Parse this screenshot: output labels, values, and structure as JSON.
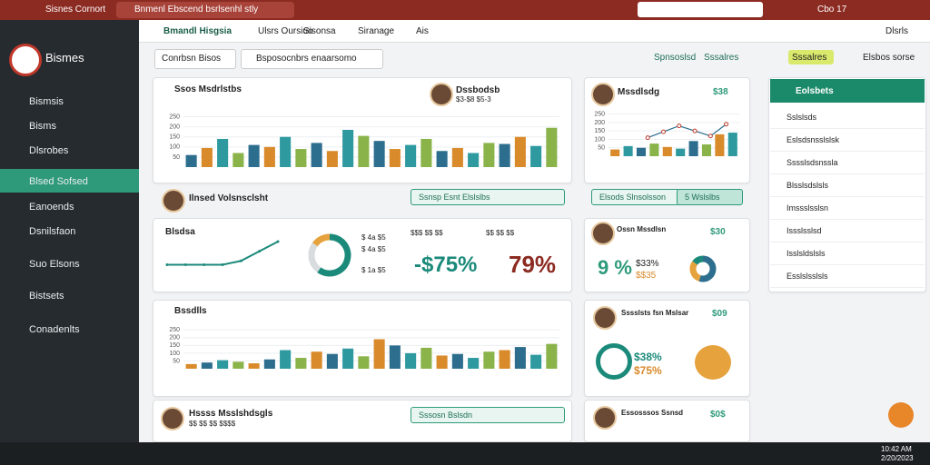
{
  "browser": {
    "tabs": [
      "Sisnes Cornort",
      "Bnmenl Ebscend bsrlsenhl stly"
    ]
  },
  "sidebar": {
    "brand": "Bismes",
    "items": [
      "Bismsis",
      "Bisms",
      "Dlsrobes",
      "Blsed Sofsed",
      "Eanoends",
      "Dsnilsfaon",
      "Suo Elsons",
      "Bistsets",
      "Conadenlts"
    ]
  },
  "nav": {
    "items": [
      "Bmandl Hisgsia",
      "Ulsrs Oursiuo",
      "Sisonsa",
      "Siranage",
      "Ais"
    ],
    "right": "Dlsrls",
    "user": "Cbo 17"
  },
  "filters": [
    "Conrbsn Bisos",
    "Bsposocnbrs enaarsomo"
  ],
  "actions": [
    "Spnsoslsd",
    "Sssalres",
    "Elsbos sorse"
  ],
  "charts": [
    {
      "title": "Ssos Msdrlstbs",
      "person": "Dssbodsb",
      "sub": "$3-$8 $5-3",
      "ylim": [
        0,
        275
      ],
      "yticks": [
        50,
        100,
        150,
        200,
        250
      ],
      "colors": [
        "#2d6e8e",
        "#d98a2b",
        "#2e9aa0",
        "#8ab34a"
      ],
      "values": [
        60,
        95,
        140,
        70,
        110,
        100,
        150,
        90,
        120,
        80,
        185,
        155,
        130,
        90,
        110,
        140,
        80,
        95,
        70,
        120,
        115,
        150,
        105,
        195
      ]
    },
    {
      "title": "Mssdlsdg",
      "value": "$38",
      "ylim": [
        0,
        275
      ],
      "yticks": [
        50,
        100,
        150,
        200,
        250
      ],
      "colors": [
        "#d98a2b",
        "#2e9aa0",
        "#2d6e8e",
        "#8ab34a"
      ],
      "values": [
        40,
        60,
        50,
        75,
        55,
        45,
        90,
        70,
        130,
        140
      ],
      "line": [
        110,
        145,
        180,
        150,
        120,
        190
      ]
    },
    {
      "title": "Bssdlls",
      "ylim": [
        0,
        275
      ],
      "yticks": [
        50,
        100,
        150,
        200,
        250
      ],
      "colors": [
        "#d98a2b",
        "#2d6e8e",
        "#2e9aa0",
        "#8ab34a"
      ],
      "values": [
        30,
        40,
        55,
        45,
        35,
        60,
        120,
        70,
        110,
        95,
        130,
        80,
        190,
        150,
        100,
        135,
        85,
        95,
        70,
        110,
        120,
        140,
        90,
        160
      ]
    }
  ],
  "row1": {
    "person": "Ilnsed Volsnsclsht",
    "button": "Ssnsp Esnt Elslslbs",
    "button2": "Elsods Slnsolsson",
    "button2b": "5 Wslslbs"
  },
  "kpi": {
    "title": "Blsdsa",
    "line": [
      20,
      20,
      20,
      20,
      30,
      55,
      80
    ],
    "donut": [
      60,
      25,
      15
    ],
    "legend": [
      "$ 4a $5",
      "$ 4a $5",
      "$ 1a $5"
    ],
    "h1": "$$$ $$ $$",
    "h2": "$$ $$ $$",
    "big1": "-$75%",
    "big2": "79%"
  },
  "card1": {
    "title": "Ossn Mssdlsn",
    "value": "$30",
    "big": "9 %",
    "sub": "$33%",
    "sub2": "$$35",
    "donut": [
      55,
      30,
      15
    ]
  },
  "card2": {
    "title": "Sssslsts fsn Mslsar",
    "value": "$09",
    "a": "$38%",
    "b": "$75%"
  },
  "bottom": {
    "person": "Hssss Msslshdsgls",
    "sub": "$$ $$ $$ $$$$",
    "button": "Sssosn Bslsdn",
    "card": "Essosssos Ssnsd",
    "cardValue": "$0$"
  },
  "list": {
    "title": "Eolsbets",
    "items": [
      "Sslslsds",
      "Eslsdsnsslslsk",
      "Sssslsdsnssla",
      "Blsslsdslsls",
      "Imssslsslsn",
      "Issslsslsd",
      "Isslsldslsls",
      "Esslslsslsls"
    ]
  },
  "taskbar": {
    "time": "10:42 AM",
    "date": "2/20/2023"
  }
}
